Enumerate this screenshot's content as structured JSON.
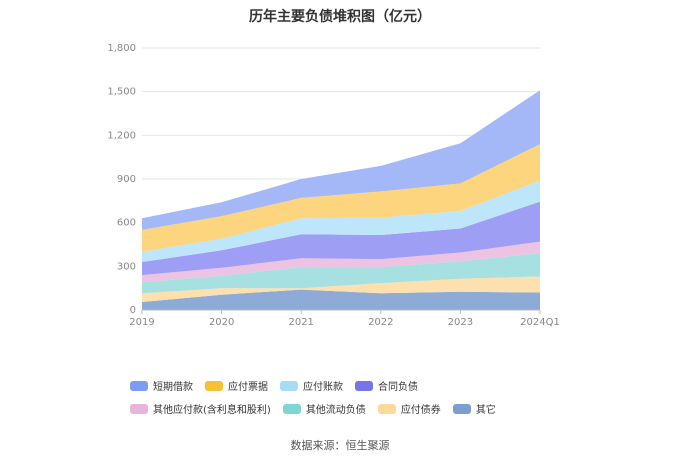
{
  "chart_data": {
    "type": "area",
    "stacked": true,
    "title": "历年主要负债堆积图（亿元）",
    "categories": [
      "2019",
      "2020",
      "2021",
      "2022",
      "2023",
      "2024Q1"
    ],
    "y_ticks": [
      "0",
      "300",
      "600",
      "900",
      "1,200",
      "1,500",
      "1,800"
    ],
    "ylim": [
      0,
      1800
    ],
    "series": [
      {
        "name": "其它",
        "color": "#8eaad6",
        "values": [
          55,
          105,
          140,
          115,
          125,
          120
        ]
      },
      {
        "name": "应付债券",
        "color": "#fde0ae",
        "values": [
          60,
          45,
          10,
          70,
          90,
          110
        ]
      },
      {
        "name": "其他流动负债",
        "color": "#a6e0e0",
        "values": [
          75,
          85,
          145,
          110,
          120,
          160
        ]
      },
      {
        "name": "其他应付款(含利息和股利)",
        "color": "#ecc3e3",
        "values": [
          50,
          55,
          60,
          55,
          60,
          80
        ]
      },
      {
        "name": "合同负债",
        "color": "#9e9ef5",
        "values": [
          90,
          120,
          165,
          165,
          165,
          275
        ]
      },
      {
        "name": "应付账款",
        "color": "#bee6fb",
        "values": [
          70,
          80,
          110,
          120,
          120,
          145
        ]
      },
      {
        "name": "应付票据",
        "color": "#fdd57e",
        "values": [
          150,
          155,
          140,
          180,
          190,
          250
        ]
      },
      {
        "name": "短期借款",
        "color": "#a4b8f7",
        "values": [
          80,
          95,
          130,
          175,
          275,
          370
        ]
      }
    ],
    "legend": [
      {
        "name": "短期借款",
        "color": "#7b9cf2"
      },
      {
        "name": "应付票据",
        "color": "#f8c032"
      },
      {
        "name": "应付账款",
        "color": "#a7dcf7"
      },
      {
        "name": "合同负债",
        "color": "#7575ea"
      },
      {
        "name": "其他应付款(含利息和股利)",
        "color": "#e7b5db"
      },
      {
        "name": "其他流动负债",
        "color": "#7fd4d4"
      },
      {
        "name": "应付债券",
        "color": "#fdd99a"
      },
      {
        "name": "其它",
        "color": "#7d9ed0"
      }
    ]
  },
  "source_text": "数据来源：恒生聚源"
}
